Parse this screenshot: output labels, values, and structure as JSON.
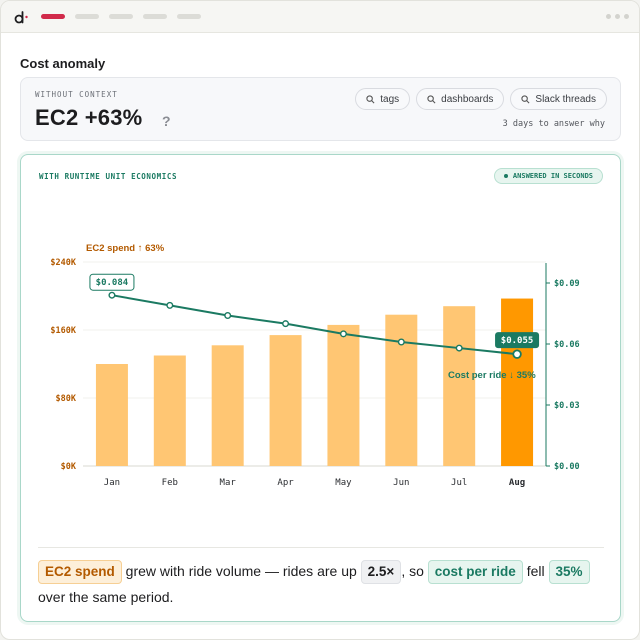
{
  "header": {
    "title": "Cost anomaly"
  },
  "without_context": {
    "label": "WITHOUT CONTEXT",
    "headline": "EC2 +63%",
    "question_mark": "?",
    "pills": [
      "tags",
      "dashboards",
      "Slack threads"
    ],
    "time_note": "3 days to answer why"
  },
  "with_context": {
    "label": "WITH RUNTIME UNIT ECONOMICS",
    "badge": "ANSWERED IN SECONDS",
    "annotation_spend": "EC2 spend ↑ 63%",
    "annotation_cost": "Cost per ride ↓ 35%"
  },
  "summary": {
    "chip_spend": "EC2 spend",
    "text1": " grew with ride volume — rides are up ",
    "chip_rides": "2.5×",
    "text2": ", so ",
    "chip_cost": "cost per ride",
    "text3": " fell ",
    "chip_pct": "35%",
    "text4": " over the same period."
  },
  "colors": {
    "accent_red": "#d12a4a",
    "bar": "#ffc673",
    "bar_highlight": "#ff9800",
    "line": "#1b7a62",
    "spend_text": "#b35a00"
  },
  "chart_data": {
    "type": "bar",
    "categories": [
      "Jan",
      "Feb",
      "Mar",
      "Apr",
      "May",
      "Jun",
      "Jul",
      "Aug"
    ],
    "highlight_category": "Aug",
    "series": [
      {
        "type": "bar",
        "axis": "left",
        "values": [
          120,
          130,
          142,
          154,
          166,
          178,
          188,
          197
        ]
      },
      {
        "type": "line",
        "axis": "right",
        "values": [
          0.084,
          0.079,
          0.074,
          0.07,
          0.065,
          0.061,
          0.058,
          0.055
        ]
      }
    ],
    "left_axis": {
      "ticks": [
        "$0K",
        "$80K",
        "$160K",
        "$240K"
      ],
      "range": [
        0,
        240
      ]
    },
    "right_axis": {
      "ticks": [
        "$0.00",
        "$0.03",
        "$0.06",
        "$0.09"
      ],
      "range": [
        0,
        0.1
      ]
    },
    "point_labels": [
      {
        "index": 0,
        "text": "$0.084"
      },
      {
        "index": 7,
        "text": "$0.055"
      }
    ]
  }
}
